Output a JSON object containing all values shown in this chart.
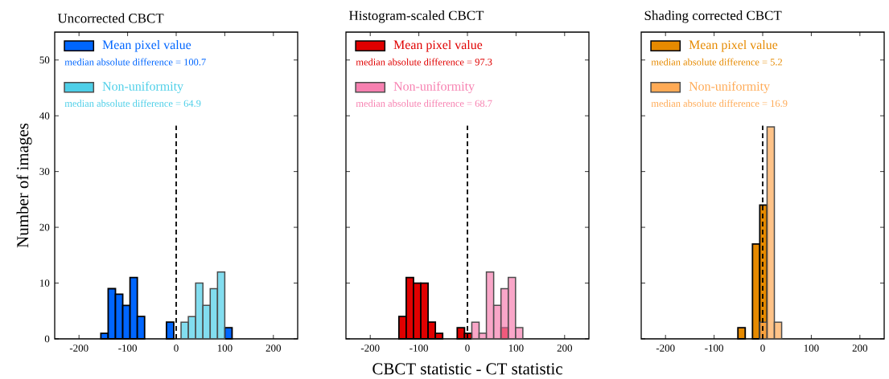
{
  "chart_data": [
    {
      "type": "histogram",
      "title": "Uncorrected CBCT",
      "ylabel": "Number of images",
      "xlim": [
        -250,
        250
      ],
      "ylim": [
        0,
        55
      ],
      "xticks": [
        -200,
        -100,
        0,
        100,
        200
      ],
      "yticks": [
        0,
        10,
        20,
        30,
        40,
        50
      ],
      "legend": "top left",
      "bins": [
        -155,
        -140,
        -125,
        -110,
        -95,
        -80,
        -65,
        -50,
        -35,
        -20,
        -5,
        10,
        25,
        40,
        55,
        70,
        85,
        100,
        115
      ],
      "series": [
        {
          "name": "Mean pixel value",
          "color": "#0066ff",
          "values": [
            1,
            9,
            8,
            6,
            11,
            4,
            0,
            0,
            0,
            3,
            0,
            0,
            0,
            0,
            0,
            0,
            0,
            2
          ]
        },
        {
          "name": "Non-uniformity",
          "color": "#4dcfe8",
          "values": [
            0,
            0,
            0,
            0,
            0,
            0,
            0,
            0,
            0,
            0,
            0,
            3,
            4,
            10,
            6,
            9,
            12,
            0
          ]
        }
      ],
      "annotations": [
        "median absolute difference = 100.7",
        "median absolute difference = 64.9"
      ],
      "ref_lines": [
        {
          "axis": "x",
          "value": 0,
          "color": "#000000",
          "line_style": "dashed"
        }
      ]
    },
    {
      "type": "histogram",
      "title": "Histogram-scaled CBCT",
      "xlabel": "CBCT statistic - CT statistic",
      "xlim": [
        -250,
        250
      ],
      "ylim": [
        0,
        55
      ],
      "xticks": [
        -200,
        -100,
        0,
        100,
        200
      ],
      "yticks": [
        0,
        10,
        20,
        30,
        40,
        50
      ],
      "legend": "top left",
      "tick_labels": "x",
      "bins": [
        -141,
        -126,
        -111,
        -96,
        -81,
        -66,
        -51,
        -36,
        -21,
        -6,
        9,
        24,
        39,
        54,
        69,
        84,
        99,
        114
      ],
      "series": [
        {
          "name": "Mean pixel value",
          "color": "#e00000",
          "values": [
            4,
            11,
            10,
            10,
            3,
            1,
            0,
            0,
            2,
            1,
            0,
            0,
            0,
            0,
            2,
            0,
            0
          ]
        },
        {
          "name": "Non-uniformity",
          "color": "#f780b0",
          "values": [
            0,
            0,
            0,
            0,
            0,
            0,
            0,
            0,
            0,
            0,
            3,
            1,
            12,
            6,
            9,
            11,
            2
          ]
        }
      ],
      "annotations": [
        "median absolute difference = 97.3",
        "median absolute difference = 68.7"
      ],
      "ref_lines": [
        {
          "axis": "x",
          "value": 0,
          "color": "#000000",
          "line_style": "dashed"
        }
      ]
    },
    {
      "type": "histogram",
      "title": "Shading corrected CBCT",
      "xlim": [
        -250,
        250
      ],
      "ylim": [
        0,
        55
      ],
      "xticks": [
        -200,
        -100,
        0,
        100,
        200
      ],
      "yticks": [
        0,
        10,
        20,
        30,
        40,
        50
      ],
      "legend": "top left",
      "tick_labels": "x",
      "bins": [
        -51,
        -36,
        -21,
        -6,
        9,
        24,
        39
      ],
      "series": [
        {
          "name": "Mean pixel value",
          "color": "#e68a00",
          "values": [
            2,
            0,
            17,
            24,
            0,
            0
          ]
        },
        {
          "name": "Non-uniformity",
          "color": "#ffaa55",
          "values": [
            0,
            0,
            0,
            3,
            38,
            3
          ]
        }
      ],
      "annotations": [
        "median absolute difference = 5.2",
        "median absolute difference = 16.9"
      ],
      "ref_lines": [
        {
          "axis": "x",
          "value": 0,
          "color": "#000000",
          "line_style": "dashed"
        }
      ]
    }
  ]
}
